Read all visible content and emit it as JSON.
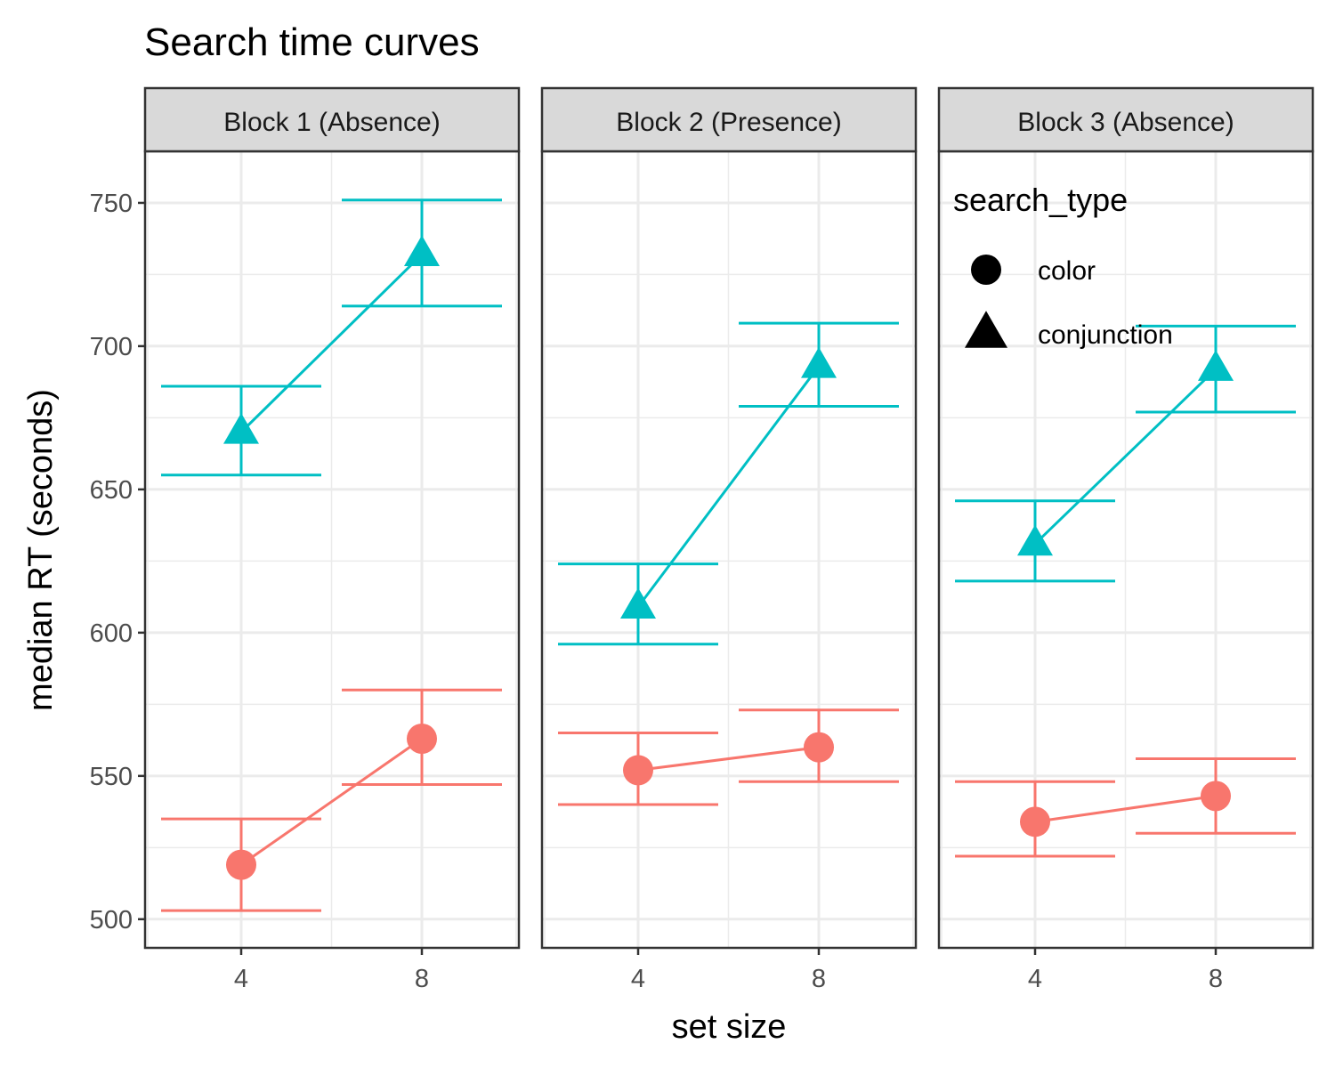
{
  "chart_data": {
    "type": "line",
    "title": "Search time curves",
    "xlabel": "set size",
    "ylabel": "median RT (seconds)",
    "x_categories": [
      "4",
      "8"
    ],
    "y_ticks": [
      "500",
      "550",
      "600",
      "650",
      "700",
      "750"
    ],
    "ylim": [
      490,
      768
    ],
    "grid": true,
    "legend": {
      "title": "search_type",
      "placement": "inside top of third panel",
      "items": [
        {
          "label": "color",
          "shape": "circle"
        },
        {
          "label": "conjunction",
          "shape": "triangle"
        }
      ]
    },
    "colors": {
      "color": "#F8766D",
      "conjunction": "#00BFC4"
    },
    "panels": [
      {
        "label": "Block 1 (Absence)",
        "series": [
          {
            "name": "color",
            "points": [
              {
                "x": "4",
                "y": 519,
                "ymin": 503,
                "ymax": 535
              },
              {
                "x": "8",
                "y": 563,
                "ymin": 547,
                "ymax": 580
              }
            ]
          },
          {
            "name": "conjunction",
            "points": [
              {
                "x": "4",
                "y": 670,
                "ymin": 655,
                "ymax": 686
              },
              {
                "x": "8",
                "y": 732,
                "ymin": 714,
                "ymax": 751
              }
            ]
          }
        ]
      },
      {
        "label": "Block 2 (Presence)",
        "series": [
          {
            "name": "color",
            "points": [
              {
                "x": "4",
                "y": 552,
                "ymin": 540,
                "ymax": 565
              },
              {
                "x": "8",
                "y": 560,
                "ymin": 548,
                "ymax": 573
              }
            ]
          },
          {
            "name": "conjunction",
            "points": [
              {
                "x": "4",
                "y": 609,
                "ymin": 596,
                "ymax": 624
              },
              {
                "x": "8",
                "y": 693,
                "ymin": 679,
                "ymax": 708
              }
            ]
          }
        ]
      },
      {
        "label": "Block 3 (Absence)",
        "series": [
          {
            "name": "color",
            "points": [
              {
                "x": "4",
                "y": 534,
                "ymin": 522,
                "ymax": 548
              },
              {
                "x": "8",
                "y": 543,
                "ymin": 530,
                "ymax": 556
              }
            ]
          },
          {
            "name": "conjunction",
            "points": [
              {
                "x": "4",
                "y": 631,
                "ymin": 618,
                "ymax": 646
              },
              {
                "x": "8",
                "y": 692,
                "ymin": 677,
                "ymax": 707
              }
            ]
          }
        ]
      }
    ]
  }
}
